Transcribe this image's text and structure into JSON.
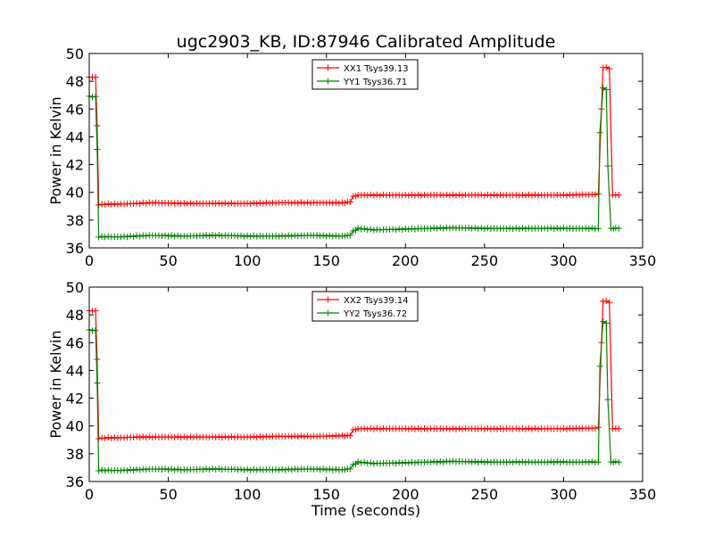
{
  "title": "ugc2903_KB, ID:87946 Calibrated Amplitude",
  "chart_data": [
    {
      "type": "line",
      "ylabel": "Power in Kelvin",
      "xlabel": "",
      "xlim": [
        0,
        350
      ],
      "ylim": [
        36,
        50
      ],
      "xticks": [
        0,
        50,
        100,
        150,
        200,
        250,
        300,
        350
      ],
      "yticks": [
        36,
        38,
        40,
        42,
        44,
        46,
        48,
        50
      ],
      "legend_position": "top-center",
      "marker": "+",
      "series": [
        {
          "name": "XX1 Tsys39.13",
          "color": "#ff0000",
          "points": [
            [
              0,
              48.3
            ],
            [
              2,
              48.3
            ],
            [
              4,
              48.3
            ],
            [
              5,
              44.8
            ],
            [
              6,
              39.1
            ],
            [
              10,
              39.15
            ],
            [
              20,
              39.15
            ],
            [
              30,
              39.2
            ],
            [
              40,
              39.25
            ],
            [
              60,
              39.2
            ],
            [
              80,
              39.2
            ],
            [
              100,
              39.2
            ],
            [
              120,
              39.25
            ],
            [
              140,
              39.25
            ],
            [
              160,
              39.25
            ],
            [
              165,
              39.3
            ],
            [
              167,
              39.7
            ],
            [
              170,
              39.8
            ],
            [
              200,
              39.8
            ],
            [
              250,
              39.8
            ],
            [
              300,
              39.8
            ],
            [
              320,
              39.85
            ],
            [
              322,
              39.9
            ],
            [
              324,
              46.0
            ],
            [
              325,
              49.0
            ],
            [
              327,
              49.0
            ],
            [
              329,
              48.9
            ],
            [
              331,
              39.8
            ],
            [
              333,
              39.8
            ],
            [
              335,
              39.8
            ]
          ]
        },
        {
          "name": "YY1 Tsys36.71",
          "color": "#008000",
          "points": [
            [
              0,
              46.9
            ],
            [
              2,
              46.9
            ],
            [
              4,
              46.9
            ],
            [
              5,
              43.1
            ],
            [
              6,
              36.8
            ],
            [
              20,
              36.8
            ],
            [
              30,
              36.85
            ],
            [
              40,
              36.9
            ],
            [
              60,
              36.85
            ],
            [
              80,
              36.9
            ],
            [
              100,
              36.85
            ],
            [
              120,
              36.85
            ],
            [
              140,
              36.9
            ],
            [
              160,
              36.85
            ],
            [
              165,
              36.9
            ],
            [
              167,
              37.2
            ],
            [
              170,
              37.4
            ],
            [
              180,
              37.3
            ],
            [
              200,
              37.35
            ],
            [
              230,
              37.45
            ],
            [
              250,
              37.4
            ],
            [
              300,
              37.4
            ],
            [
              322,
              37.4
            ],
            [
              323,
              44.3
            ],
            [
              325,
              47.5
            ],
            [
              327,
              47.4
            ],
            [
              328,
              41.9
            ],
            [
              330,
              37.4
            ],
            [
              333,
              37.4
            ],
            [
              335,
              37.4
            ]
          ]
        }
      ]
    },
    {
      "type": "line",
      "ylabel": "Power in Kelvin",
      "xlabel": "Time (seconds)",
      "xlim": [
        0,
        350
      ],
      "ylim": [
        36,
        50
      ],
      "xticks": [
        0,
        50,
        100,
        150,
        200,
        250,
        300,
        350
      ],
      "yticks": [
        36,
        38,
        40,
        42,
        44,
        46,
        48,
        50
      ],
      "legend_position": "top-center",
      "marker": "+",
      "series": [
        {
          "name": "XX2 Tsys39.14",
          "color": "#ff0000",
          "points": [
            [
              0,
              48.3
            ],
            [
              2,
              48.3
            ],
            [
              4,
              48.3
            ],
            [
              5,
              44.8
            ],
            [
              6,
              39.1
            ],
            [
              10,
              39.15
            ],
            [
              20,
              39.15
            ],
            [
              30,
              39.2
            ],
            [
              40,
              39.2
            ],
            [
              60,
              39.2
            ],
            [
              80,
              39.2
            ],
            [
              100,
              39.2
            ],
            [
              120,
              39.25
            ],
            [
              140,
              39.25
            ],
            [
              160,
              39.3
            ],
            [
              165,
              39.3
            ],
            [
              167,
              39.7
            ],
            [
              170,
              39.8
            ],
            [
              200,
              39.8
            ],
            [
              250,
              39.8
            ],
            [
              300,
              39.8
            ],
            [
              320,
              39.85
            ],
            [
              322,
              39.9
            ],
            [
              324,
              46.0
            ],
            [
              325,
              49.0
            ],
            [
              327,
              49.0
            ],
            [
              329,
              48.9
            ],
            [
              331,
              39.8
            ],
            [
              333,
              39.8
            ],
            [
              335,
              39.8
            ]
          ]
        },
        {
          "name": "YY2 Tsys36.72",
          "color": "#008000",
          "points": [
            [
              0,
              46.9
            ],
            [
              2,
              46.9
            ],
            [
              4,
              46.9
            ],
            [
              5,
              43.1
            ],
            [
              6,
              36.8
            ],
            [
              20,
              36.8
            ],
            [
              30,
              36.85
            ],
            [
              40,
              36.9
            ],
            [
              60,
              36.85
            ],
            [
              80,
              36.9
            ],
            [
              100,
              36.85
            ],
            [
              120,
              36.85
            ],
            [
              140,
              36.9
            ],
            [
              160,
              36.85
            ],
            [
              165,
              36.9
            ],
            [
              167,
              37.2
            ],
            [
              170,
              37.4
            ],
            [
              180,
              37.3
            ],
            [
              200,
              37.35
            ],
            [
              230,
              37.45
            ],
            [
              250,
              37.4
            ],
            [
              300,
              37.4
            ],
            [
              322,
              37.4
            ],
            [
              323,
              44.3
            ],
            [
              325,
              47.5
            ],
            [
              327,
              47.4
            ],
            [
              328,
              41.9
            ],
            [
              330,
              37.4
            ],
            [
              333,
              37.4
            ],
            [
              335,
              37.4
            ]
          ]
        }
      ]
    }
  ]
}
